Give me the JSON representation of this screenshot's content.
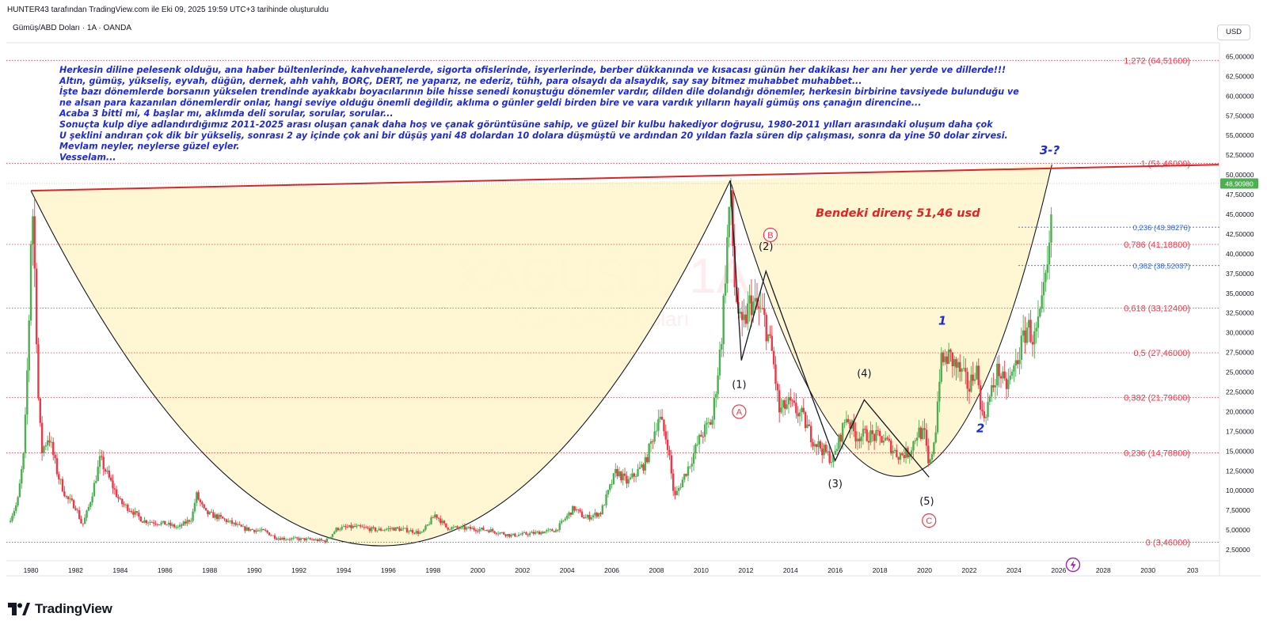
{
  "header": {
    "attribution": "HUNTER43 tarafından TradingView.com ile Eki 09, 2025 19:59 UTC+3 tarihinde oluşturuldu",
    "symbol_line": "Gümüş/ABD Doları · 1A · OANDA",
    "currency_button": "USD"
  },
  "watermark": {
    "ticker": "XAGUSD, 1A",
    "name": "Gümüş/ABD Doları"
  },
  "brand": {
    "name": "TradingView"
  },
  "annotation": {
    "lines": [
      "Herkesin diline pelesenk olduğu, ana haber bültenlerinde, kahvehanelerde, sigorta ofislerinde, isyerlerinde, berber dükkanında ve kısacası günün her dakikası her anı her yerde ve dillerde!!!",
      "Altın, gümüş, yükseliş, eyvah, düğün, dernek, ahh vahh, BORÇ, DERT, ne yaparız, ne ederiz, tühh, para olsaydı da alsaydık, say say bitmez muhabbet muhabbet...",
      "İşte bazı dönemlerde borsanın yükselen trendinde ayakkabı boyacılarının bile hisse senedi konuştuğu dönemler vardır, dilden dile dolandığı dönemler, herkesin birbirine tavsiyede bulunduğu ve",
      "ne alsan para kazanılan dönemlerdir onlar, hangi seviye olduğu önemli değildir, aklıma o günler geldi birden bire ve vara vardık yılların hayali gümüş ons çanağın direncine...",
      "Acaba 3 bitti mi, 4 başlar mı, aklımda deli sorular, sorular, sorular...",
      "Sonuçta kulp diye adlandırdığımız 2011-2025 arası oluşan çanak daha hoş ve çanak görüntüsüne sahip, ve güzel bir kulbu hakediyor doğrusu, 1980-2011 yılları arasındaki oluşum daha çok",
      "U şeklini andıran çok dik bir  yükseliş, sonrası 2 ay içinde çok ani bir düşüş yani 48 dolardan 10 dolara düşmüştü ve ardından 20 yıldan fazla süren dip çalışması, sonra da yine 50 dolar zirvesi.",
      "Mevlam neyler, neylerse güzel eyler.",
      "Vesselam..."
    ],
    "resistance_note": "Bendeki direnç 51,46 usd"
  },
  "colors": {
    "up": "#4caf50",
    "down": "#f23645",
    "fib_red": "#f23645",
    "fib_blue": "#2962ff",
    "annotation_text": "#1e2ad8",
    "cup_fill": "#fff6cc",
    "resistance_line": "#e02424",
    "current_price_bg": "#4caf50"
  },
  "chart_data": {
    "type": "candlestick",
    "symbol": "XAGUSD",
    "interval": "1A",
    "current_price": 48.9098,
    "current_price_label": "48,90980",
    "x_axis": {
      "labels": [
        "1980",
        "1982",
        "1984",
        "1986",
        "1988",
        "1990",
        "1992",
        "1994",
        "1996",
        "1998",
        "2000",
        "2002",
        "2004",
        "2006",
        "2008",
        "2010",
        "2012",
        "2014",
        "2016",
        "2018",
        "2020",
        "2022",
        "2024",
        "2026",
        "2028",
        "2030",
        "203"
      ],
      "range": [
        1978.9,
        2033.2
      ]
    },
    "y_axis": {
      "labels": [
        "65,00000",
        "62,50000",
        "60,00000",
        "57,50000",
        "55,00000",
        "52,50000",
        "50,00000",
        "47,50000",
        "45,00000",
        "42,50000",
        "40,00000",
        "37,50000",
        "35,00000",
        "32,50000",
        "30,00000",
        "27,50000",
        "25,00000",
        "22,50000",
        "20,00000",
        "17,50000",
        "15,00000",
        "12,50000",
        "10,00000",
        "7,50000",
        "5,00000",
        "2,50000"
      ],
      "range": [
        1.1,
        66.75
      ]
    },
    "price_path": [
      [
        1979.0,
        6.0
      ],
      [
        1979.4,
        8.5
      ],
      [
        1979.7,
        15.0
      ],
      [
        1979.9,
        30.0
      ],
      [
        1980.05,
        48.0
      ],
      [
        1980.2,
        35.0
      ],
      [
        1980.35,
        20.0
      ],
      [
        1980.5,
        15.0
      ],
      [
        1980.8,
        17.0
      ],
      [
        1981.2,
        12.0
      ],
      [
        1981.6,
        9.0
      ],
      [
        1982.0,
        8.0
      ],
      [
        1982.3,
        5.5
      ],
      [
        1982.6,
        8.0
      ],
      [
        1982.9,
        11.5
      ],
      [
        1983.1,
        14.0
      ],
      [
        1983.5,
        11.5
      ],
      [
        1984.0,
        8.5
      ],
      [
        1984.5,
        7.5
      ],
      [
        1985.0,
        6.2
      ],
      [
        1985.5,
        6.0
      ],
      [
        1986.0,
        5.8
      ],
      [
        1986.6,
        5.3
      ],
      [
        1987.2,
        6.5
      ],
      [
        1987.4,
        9.5
      ],
      [
        1987.8,
        7.2
      ],
      [
        1988.5,
        6.5
      ],
      [
        1989.5,
        5.2
      ],
      [
        1990.5,
        4.8
      ],
      [
        1991.0,
        4.0
      ],
      [
        1991.5,
        3.9
      ],
      [
        1992.5,
        3.8
      ],
      [
        1993.2,
        3.6
      ],
      [
        1993.7,
        5.2
      ],
      [
        1994.5,
        5.4
      ],
      [
        1995.5,
        5.0
      ],
      [
        1996.2,
        5.2
      ],
      [
        1996.8,
        5.0
      ],
      [
        1997.5,
        4.6
      ],
      [
        1998.1,
        7.0
      ],
      [
        1998.6,
        5.3
      ],
      [
        1999.5,
        5.2
      ],
      [
        2000.5,
        5.0
      ],
      [
        2001.5,
        4.3
      ],
      [
        2002.5,
        4.6
      ],
      [
        2003.5,
        5.0
      ],
      [
        2004.3,
        7.8
      ],
      [
        2004.8,
        6.5
      ],
      [
        2005.5,
        7.2
      ],
      [
        2006.2,
        12.5
      ],
      [
        2006.7,
        11.0
      ],
      [
        2007.5,
        13.5
      ],
      [
        2008.1,
        19.5
      ],
      [
        2008.5,
        16.0
      ],
      [
        2008.8,
        9.0
      ],
      [
        2009.5,
        13.5
      ],
      [
        2010.0,
        17.0
      ],
      [
        2010.5,
        19.0
      ],
      [
        2010.9,
        29.0
      ],
      [
        2011.3,
        48.0
      ],
      [
        2011.5,
        36.0
      ],
      [
        2011.8,
        30.0
      ],
      [
        2012.2,
        34.0
      ],
      [
        2012.8,
        32.0
      ],
      [
        2013.2,
        27.0
      ],
      [
        2013.5,
        20.0
      ],
      [
        2013.9,
        21.0
      ],
      [
        2014.5,
        19.5
      ],
      [
        2015.0,
        16.5
      ],
      [
        2015.5,
        15.0
      ],
      [
        2015.9,
        13.8
      ],
      [
        2016.5,
        19.5
      ],
      [
        2016.9,
        17.0
      ],
      [
        2017.5,
        17.0
      ],
      [
        2018.2,
        16.5
      ],
      [
        2018.8,
        14.5
      ],
      [
        2019.3,
        14.8
      ],
      [
        2019.7,
        17.5
      ],
      [
        2020.0,
        17.0
      ],
      [
        2020.2,
        12.5
      ],
      [
        2020.5,
        18.0
      ],
      [
        2020.7,
        26.0
      ],
      [
        2021.1,
        27.0
      ],
      [
        2021.6,
        25.0
      ],
      [
        2022.0,
        23.0
      ],
      [
        2022.3,
        26.0
      ],
      [
        2022.6,
        19.0
      ],
      [
        2022.9,
        21.5
      ],
      [
        2023.3,
        25.5
      ],
      [
        2023.6,
        23.0
      ],
      [
        2023.9,
        24.5
      ],
      [
        2024.3,
        28.0
      ],
      [
        2024.6,
        31.0
      ],
      [
        2024.9,
        29.0
      ],
      [
        2025.2,
        32.0
      ],
      [
        2025.4,
        36.0
      ],
      [
        2025.6,
        40.0
      ],
      [
        2025.72,
        48.909
      ]
    ],
    "fib_levels": [
      {
        "label": "1,272 (64,51600)",
        "value": 64.516,
        "color": "red"
      },
      {
        "label": "1 (51,46000)",
        "value": 51.46,
        "color": "red"
      },
      {
        "label": "0,786 (41,18800)",
        "value": 41.188,
        "color": "red"
      },
      {
        "label": "0,618 (33,12400)",
        "value": 33.124,
        "color": "red"
      },
      {
        "label": "0,5 (27,46000)",
        "value": 27.46,
        "color": "red"
      },
      {
        "label": "0,382 (21,79600)",
        "value": 21.796,
        "color": "red"
      },
      {
        "label": "0,236 (14,78800)",
        "value": 14.788,
        "color": "red"
      },
      {
        "label": "0 (3,46000)",
        "value": 3.46,
        "color": "red"
      },
      {
        "label": "0,236 (43,38276)",
        "value": 43.38276,
        "color": "blue"
      },
      {
        "label": "0,382 (38,52037)",
        "value": 38.52037,
        "color": "blue"
      }
    ],
    "resistance_line": [
      [
        1980.0,
        48.0
      ],
      [
        2033.2,
        51.3
      ]
    ],
    "cups": [
      {
        "name": "cup_1980_2011",
        "x": [
          1980.0,
          2011.3
        ],
        "top": [
          48.0,
          49.3
        ],
        "bottom_x": 1995.8,
        "bottom_y": 3.0
      },
      {
        "name": "cup_2011_2025",
        "x": [
          2011.3,
          2025.7
        ],
        "top": [
          49.3,
          51.3
        ],
        "bottom_x": 2018.9,
        "bottom_y": 11.8
      }
    ],
    "wave_path": [
      [
        2011.3,
        49.3
      ],
      [
        2011.8,
        26.5
      ],
      [
        2012.9,
        37.8
      ],
      [
        2016.0,
        13.8
      ],
      [
        2017.3,
        21.5
      ],
      [
        2020.2,
        11.7
      ]
    ],
    "wave_labels": [
      {
        "text": "(1)",
        "x": 2011.7,
        "y": 23.0
      },
      {
        "text": "(2)",
        "x": 2012.9,
        "y": 40.5
      },
      {
        "text": "(3)",
        "x": 2016.0,
        "y": 10.4
      },
      {
        "text": "(4)",
        "x": 2017.3,
        "y": 24.4
      },
      {
        "text": "(5)",
        "x": 2020.1,
        "y": 8.2
      },
      {
        "text": "1",
        "x": 2020.8,
        "y": 31.0,
        "style": "blue"
      },
      {
        "text": "2",
        "x": 2022.5,
        "y": 17.4,
        "style": "blue"
      },
      {
        "text": "3-?",
        "x": 2025.6,
        "y": 52.6,
        "style": "blue"
      }
    ],
    "circle_labels": [
      {
        "text": "A",
        "x": 2011.7,
        "y": 20.0
      },
      {
        "text": "B",
        "x": 2013.1,
        "y": 42.4
      },
      {
        "text": "C",
        "x": 2020.2,
        "y": 6.2
      }
    ],
    "grid": false
  }
}
